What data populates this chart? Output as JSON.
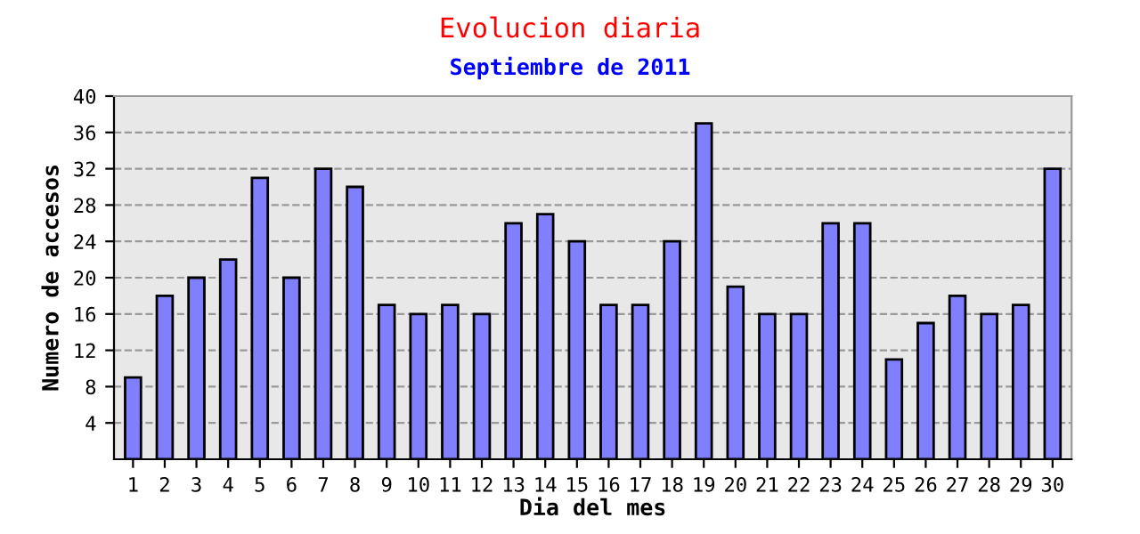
{
  "chart_data": {
    "type": "bar",
    "title": "Evolucion diaria",
    "subtitle": "Septiembre de 2011",
    "xlabel": "Dia del mes",
    "ylabel": "Numero de accesos",
    "categories": [
      "1",
      "2",
      "3",
      "4",
      "5",
      "6",
      "7",
      "8",
      "9",
      "10",
      "11",
      "12",
      "13",
      "14",
      "15",
      "16",
      "17",
      "18",
      "19",
      "20",
      "21",
      "22",
      "23",
      "24",
      "25",
      "26",
      "27",
      "28",
      "29",
      "30"
    ],
    "values": [
      9,
      18,
      20,
      22,
      31,
      20,
      32,
      30,
      17,
      16,
      17,
      16,
      26,
      27,
      24,
      17,
      17,
      24,
      37,
      19,
      16,
      16,
      26,
      26,
      11,
      15,
      18,
      16,
      17,
      32
    ],
    "color": "#8080ff",
    "ylim": [
      0,
      40
    ],
    "yticks": [
      4,
      8,
      12,
      16,
      20,
      24,
      28,
      32,
      36,
      40
    ],
    "grid": "y",
    "legend": false
  }
}
